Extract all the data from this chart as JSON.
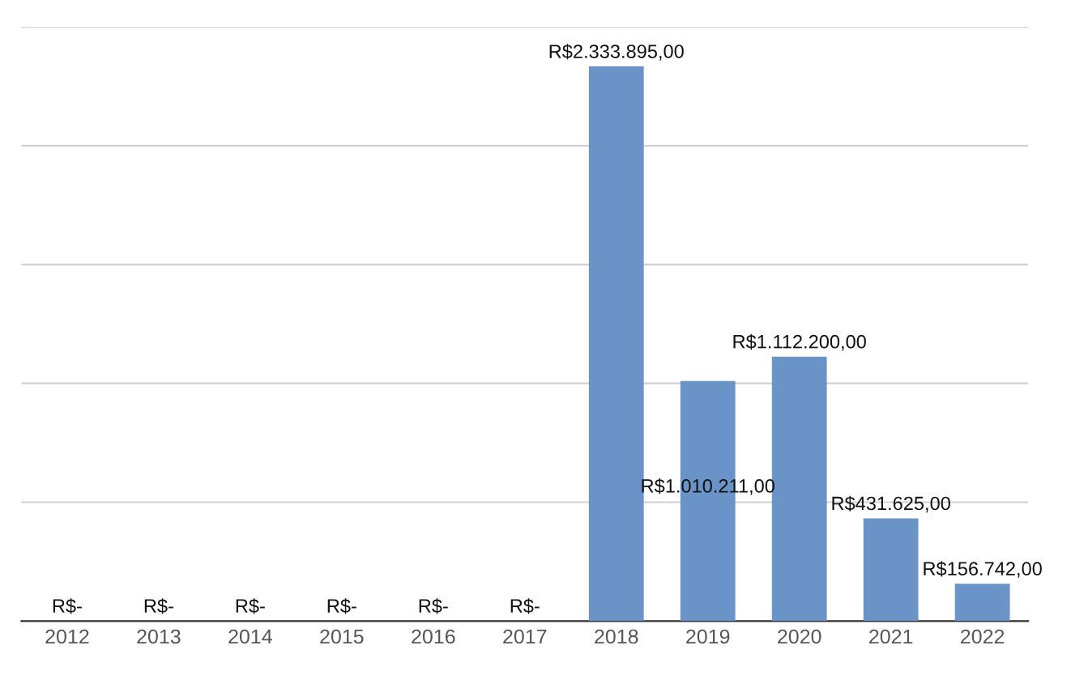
{
  "chart_data": {
    "type": "bar",
    "categories": [
      "2012",
      "2013",
      "2014",
      "2015",
      "2016",
      "2017",
      "2018",
      "2019",
      "2020",
      "2021",
      "2022"
    ],
    "values": [
      0,
      0,
      0,
      0,
      0,
      0,
      2333895,
      1010211,
      1112200,
      431625,
      156742
    ],
    "value_labels": [
      "R$-",
      "R$-",
      "R$-",
      "R$-",
      "R$-",
      "R$-",
      "R$2.333.895,00",
      "R$1.010.211,00",
      "R$1.112.200,00",
      "R$431.625,00",
      "R$156.742,00"
    ],
    "color": "#6a93c8",
    "ylim": [
      0,
      2500000
    ],
    "yticks": [
      {
        "value": 0,
        "label": null
      },
      {
        "value": 500000,
        "label": null
      },
      {
        "value": 1000000,
        "label": null
      },
      {
        "value": 1500000,
        "label": null
      },
      {
        "value": 2000000,
        "label": null
      },
      {
        "value": 2500000,
        "label": null
      }
    ],
    "grid": "y",
    "tick_labels": "x"
  }
}
